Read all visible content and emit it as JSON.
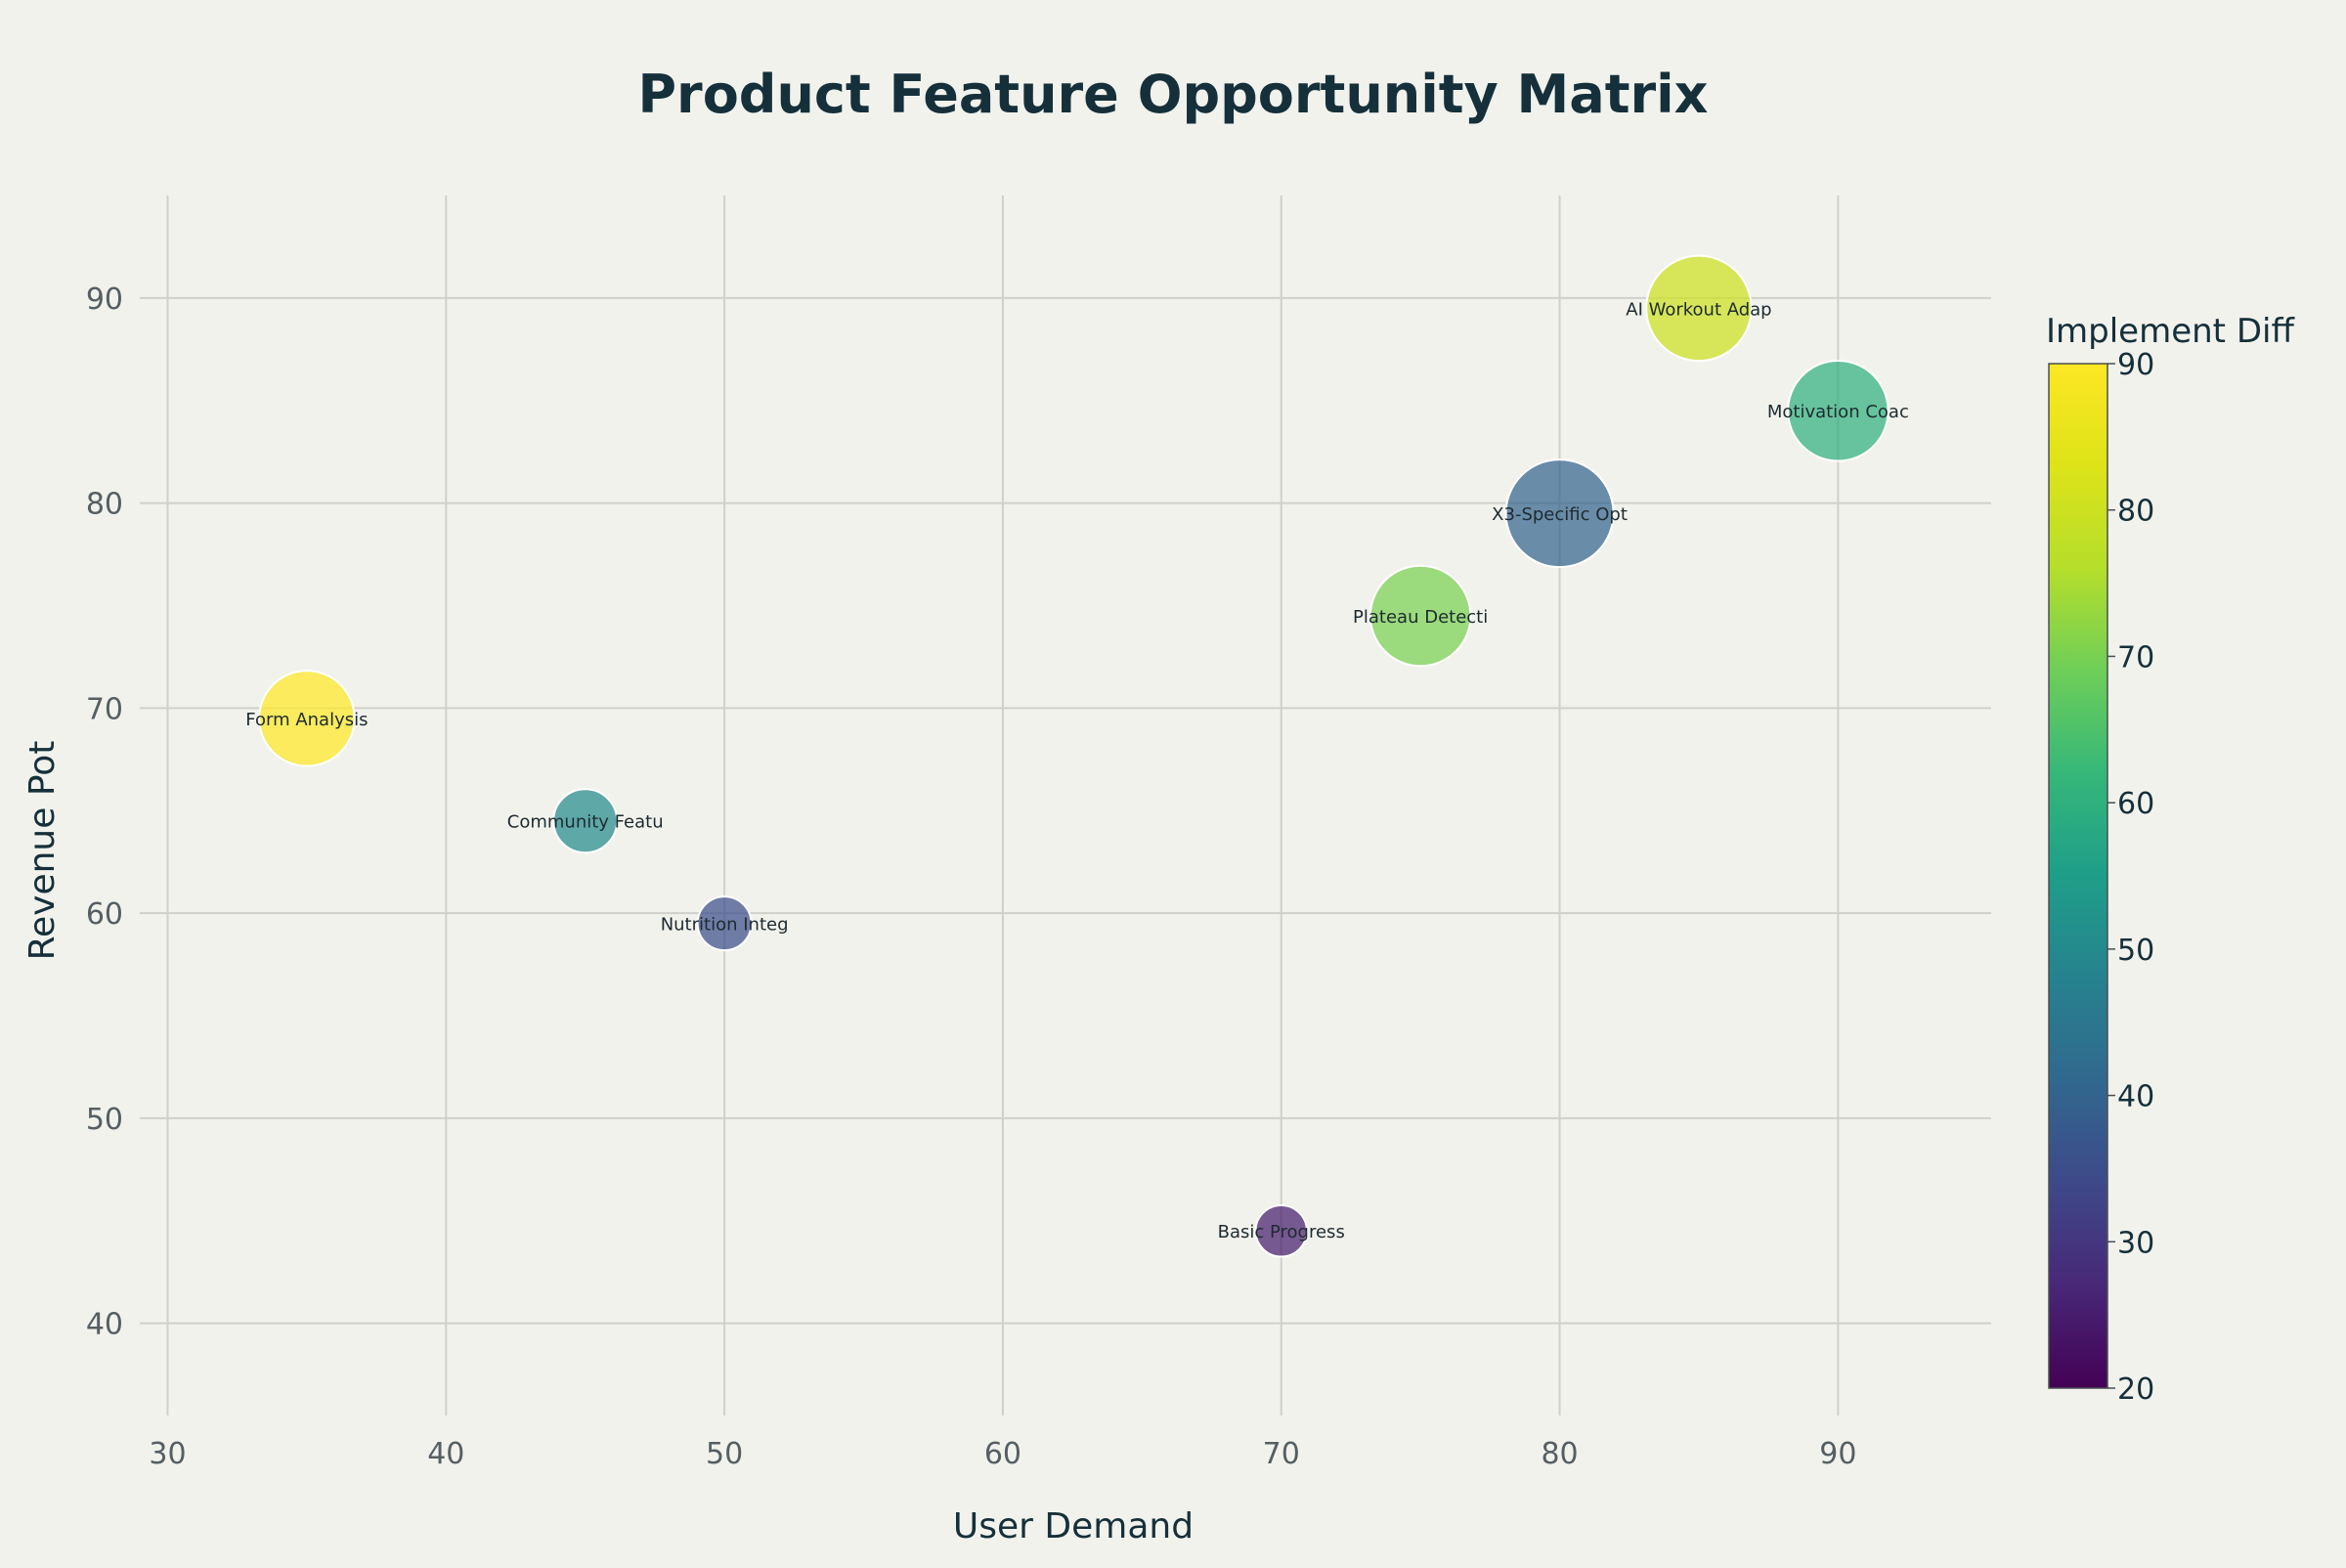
{
  "chart_data": {
    "type": "scatter",
    "title": "Product Feature Opportunity Matrix",
    "xlabel": "User Demand",
    "ylabel": "Revenue Pot",
    "xlim": [
      29,
      95.5
    ],
    "ylim": [
      35.5,
      95
    ],
    "x_ticks": [
      30,
      40,
      50,
      60,
      70,
      80,
      90
    ],
    "y_ticks": [
      40,
      50,
      60,
      70,
      80,
      90
    ],
    "grid": true,
    "colorbar": {
      "title": "Implement Diff",
      "colorscale": "Viridis",
      "range": [
        20,
        90
      ],
      "ticks": [
        20,
        30,
        40,
        50,
        60,
        70,
        80,
        90
      ]
    },
    "points": [
      {
        "label": "AI Workout Adap",
        "x": 85,
        "y": 89.5,
        "color_value": 80,
        "size": 43
      },
      {
        "label": "Motivation Coac",
        "x": 90,
        "y": 84.5,
        "color_value": 60,
        "size": 41
      },
      {
        "label": "X3-Specific Opt",
        "x": 80,
        "y": 79.5,
        "color_value": 40,
        "size": 44
      },
      {
        "label": "Plateau Detecti",
        "x": 75,
        "y": 74.5,
        "color_value": 70,
        "size": 41
      },
      {
        "label": "Form Analysis",
        "x": 35,
        "y": 69.5,
        "color_value": 90,
        "size": 39
      },
      {
        "label": "Community Featu",
        "x": 45,
        "y": 64.5,
        "color_value": 50,
        "size": 26
      },
      {
        "label": "Nutrition Integ",
        "x": 50,
        "y": 59.5,
        "color_value": 35,
        "size": 22
      },
      {
        "label": "Basic Progress",
        "x": 70,
        "y": 44.5,
        "color_value": 25,
        "size": 21
      }
    ]
  }
}
